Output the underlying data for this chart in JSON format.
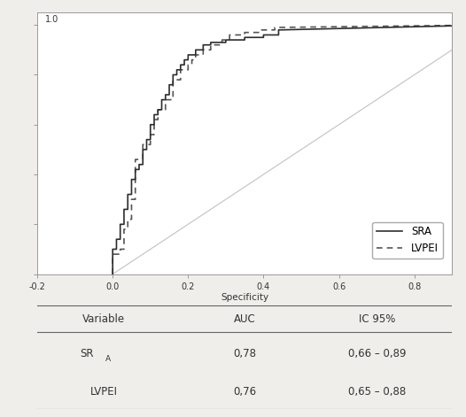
{
  "background_color": "#f0eeea",
  "plot_bg": "#ffffff",
  "sra_color": "#2d2d2d",
  "lvpei_color": "#555555",
  "diag_color": "#c8c8c8",
  "sra_x": [
    0.0,
    0.0,
    0.01,
    0.01,
    0.02,
    0.02,
    0.03,
    0.03,
    0.04,
    0.04,
    0.05,
    0.05,
    0.06,
    0.06,
    0.07,
    0.07,
    0.08,
    0.08,
    0.09,
    0.09,
    0.1,
    0.1,
    0.11,
    0.11,
    0.12,
    0.12,
    0.13,
    0.13,
    0.14,
    0.14,
    0.15,
    0.15,
    0.16,
    0.16,
    0.17,
    0.17,
    0.18,
    0.18,
    0.19,
    0.19,
    0.2,
    0.2,
    0.22,
    0.22,
    0.24,
    0.24,
    0.26,
    0.26,
    0.3,
    0.3,
    0.35,
    0.35,
    0.4,
    0.4,
    0.44,
    0.44,
    1.0
  ],
  "sra_y": [
    0.0,
    0.1,
    0.1,
    0.14,
    0.14,
    0.2,
    0.2,
    0.26,
    0.26,
    0.32,
    0.32,
    0.38,
    0.38,
    0.42,
    0.42,
    0.44,
    0.44,
    0.5,
    0.5,
    0.54,
    0.54,
    0.6,
    0.6,
    0.64,
    0.64,
    0.66,
    0.66,
    0.7,
    0.7,
    0.72,
    0.72,
    0.76,
    0.76,
    0.8,
    0.8,
    0.82,
    0.82,
    0.84,
    0.84,
    0.86,
    0.86,
    0.88,
    0.88,
    0.9,
    0.9,
    0.92,
    0.92,
    0.93,
    0.93,
    0.94,
    0.94,
    0.95,
    0.95,
    0.96,
    0.96,
    0.98,
    1.0
  ],
  "lvpei_x": [
    0.0,
    0.0,
    0.02,
    0.02,
    0.03,
    0.03,
    0.04,
    0.04,
    0.05,
    0.05,
    0.06,
    0.06,
    0.08,
    0.08,
    0.1,
    0.1,
    0.11,
    0.11,
    0.12,
    0.12,
    0.14,
    0.14,
    0.16,
    0.16,
    0.18,
    0.18,
    0.2,
    0.2,
    0.21,
    0.21,
    0.22,
    0.22,
    0.24,
    0.24,
    0.26,
    0.26,
    0.29,
    0.29,
    0.31,
    0.31,
    0.35,
    0.35,
    0.39,
    0.39,
    0.43,
    0.43,
    1.0
  ],
  "lvpei_y": [
    0.0,
    0.08,
    0.08,
    0.1,
    0.1,
    0.18,
    0.18,
    0.22,
    0.22,
    0.3,
    0.3,
    0.46,
    0.46,
    0.52,
    0.52,
    0.56,
    0.56,
    0.62,
    0.62,
    0.66,
    0.66,
    0.7,
    0.7,
    0.78,
    0.78,
    0.82,
    0.82,
    0.84,
    0.84,
    0.86,
    0.86,
    0.88,
    0.88,
    0.9,
    0.9,
    0.92,
    0.92,
    0.94,
    0.94,
    0.96,
    0.96,
    0.97,
    0.97,
    0.98,
    0.98,
    0.99,
    1.0
  ],
  "xlabel": "Specificity",
  "xlim": [
    -0.2,
    0.9
  ],
  "ylim": [
    0.0,
    1.05
  ],
  "xticks": [
    -0.2,
    0.0,
    0.2,
    0.4,
    0.6,
    0.8
  ],
  "xtick_labels": [
    "-0.2",
    "0.0",
    "0.2",
    "0.4",
    "0.6",
    "0.8"
  ],
  "ytick_label_top": "1.0",
  "legend_labels": [
    "SRA",
    "LVPEI"
  ],
  "table_headers": [
    "Variable",
    "AUC",
    "IC 95%"
  ],
  "table_row1_col1a": "SR",
  "table_row1_col1b": "A",
  "table_row1_col2": "0,78",
  "table_row1_col3": "0,66 – 0,89",
  "table_row2_col1": "LVPEI",
  "table_row2_col2": "0,76",
  "table_row2_col3": "0,65 – 0,88",
  "font_color": "#333333",
  "tick_fontsize": 7,
  "label_fontsize": 7.5,
  "legend_fontsize": 8.5,
  "table_header_fontsize": 8.5,
  "table_data_fontsize": 8.5
}
